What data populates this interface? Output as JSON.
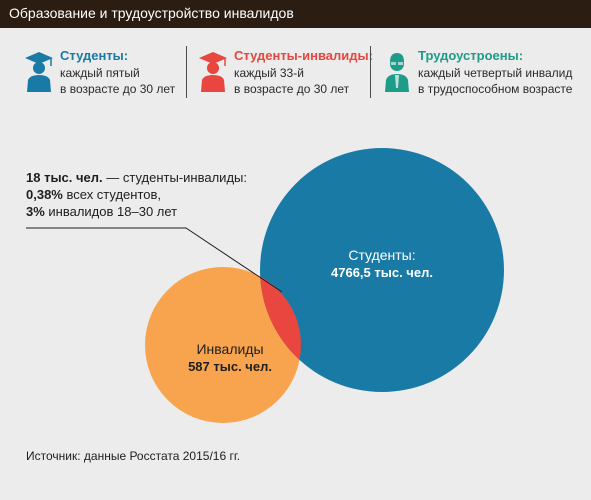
{
  "header": {
    "title": "Образование и трудоустройство инвалидов"
  },
  "legend": [
    {
      "icon": "student-graduate-icon",
      "color": "#1a7aa6",
      "title": "Студенты:",
      "line1": "каждый пятый",
      "line2": "в возрасте до 30 лет"
    },
    {
      "icon": "disabled-student-icon",
      "color": "#e8463e",
      "title": "Студенты-инвалиды:",
      "line1": "каждый 33-й",
      "line2": "в возрасте до 30 лет"
    },
    {
      "icon": "employed-person-icon",
      "color": "#1e9c8a",
      "title": "Трудоустроены:",
      "line1": "каждый четвертый инвалид",
      "line2": "в трудоспособном возрасте"
    }
  ],
  "callout": {
    "line1_bold": "18 тыс. чел.",
    "line1_rest": " — студенты-инвалиды:",
    "line2_bold": "0,38%",
    "line2_rest": " всех студентов,",
    "line3_bold": "3%",
    "line3_rest": " инвалидов 18–30 лет"
  },
  "circles": {
    "students": {
      "label": "Студенты:",
      "value": "4766,5 тыс. чел.",
      "color": "#1a7aa6"
    },
    "disabled": {
      "label": "Инвалиды",
      "value": "587 тыс. чел.",
      "color": "#f8a44f"
    },
    "overlap": {
      "color": "#e8463e"
    }
  },
  "source": "Источник: данные Росстата 2015/16 гг."
}
